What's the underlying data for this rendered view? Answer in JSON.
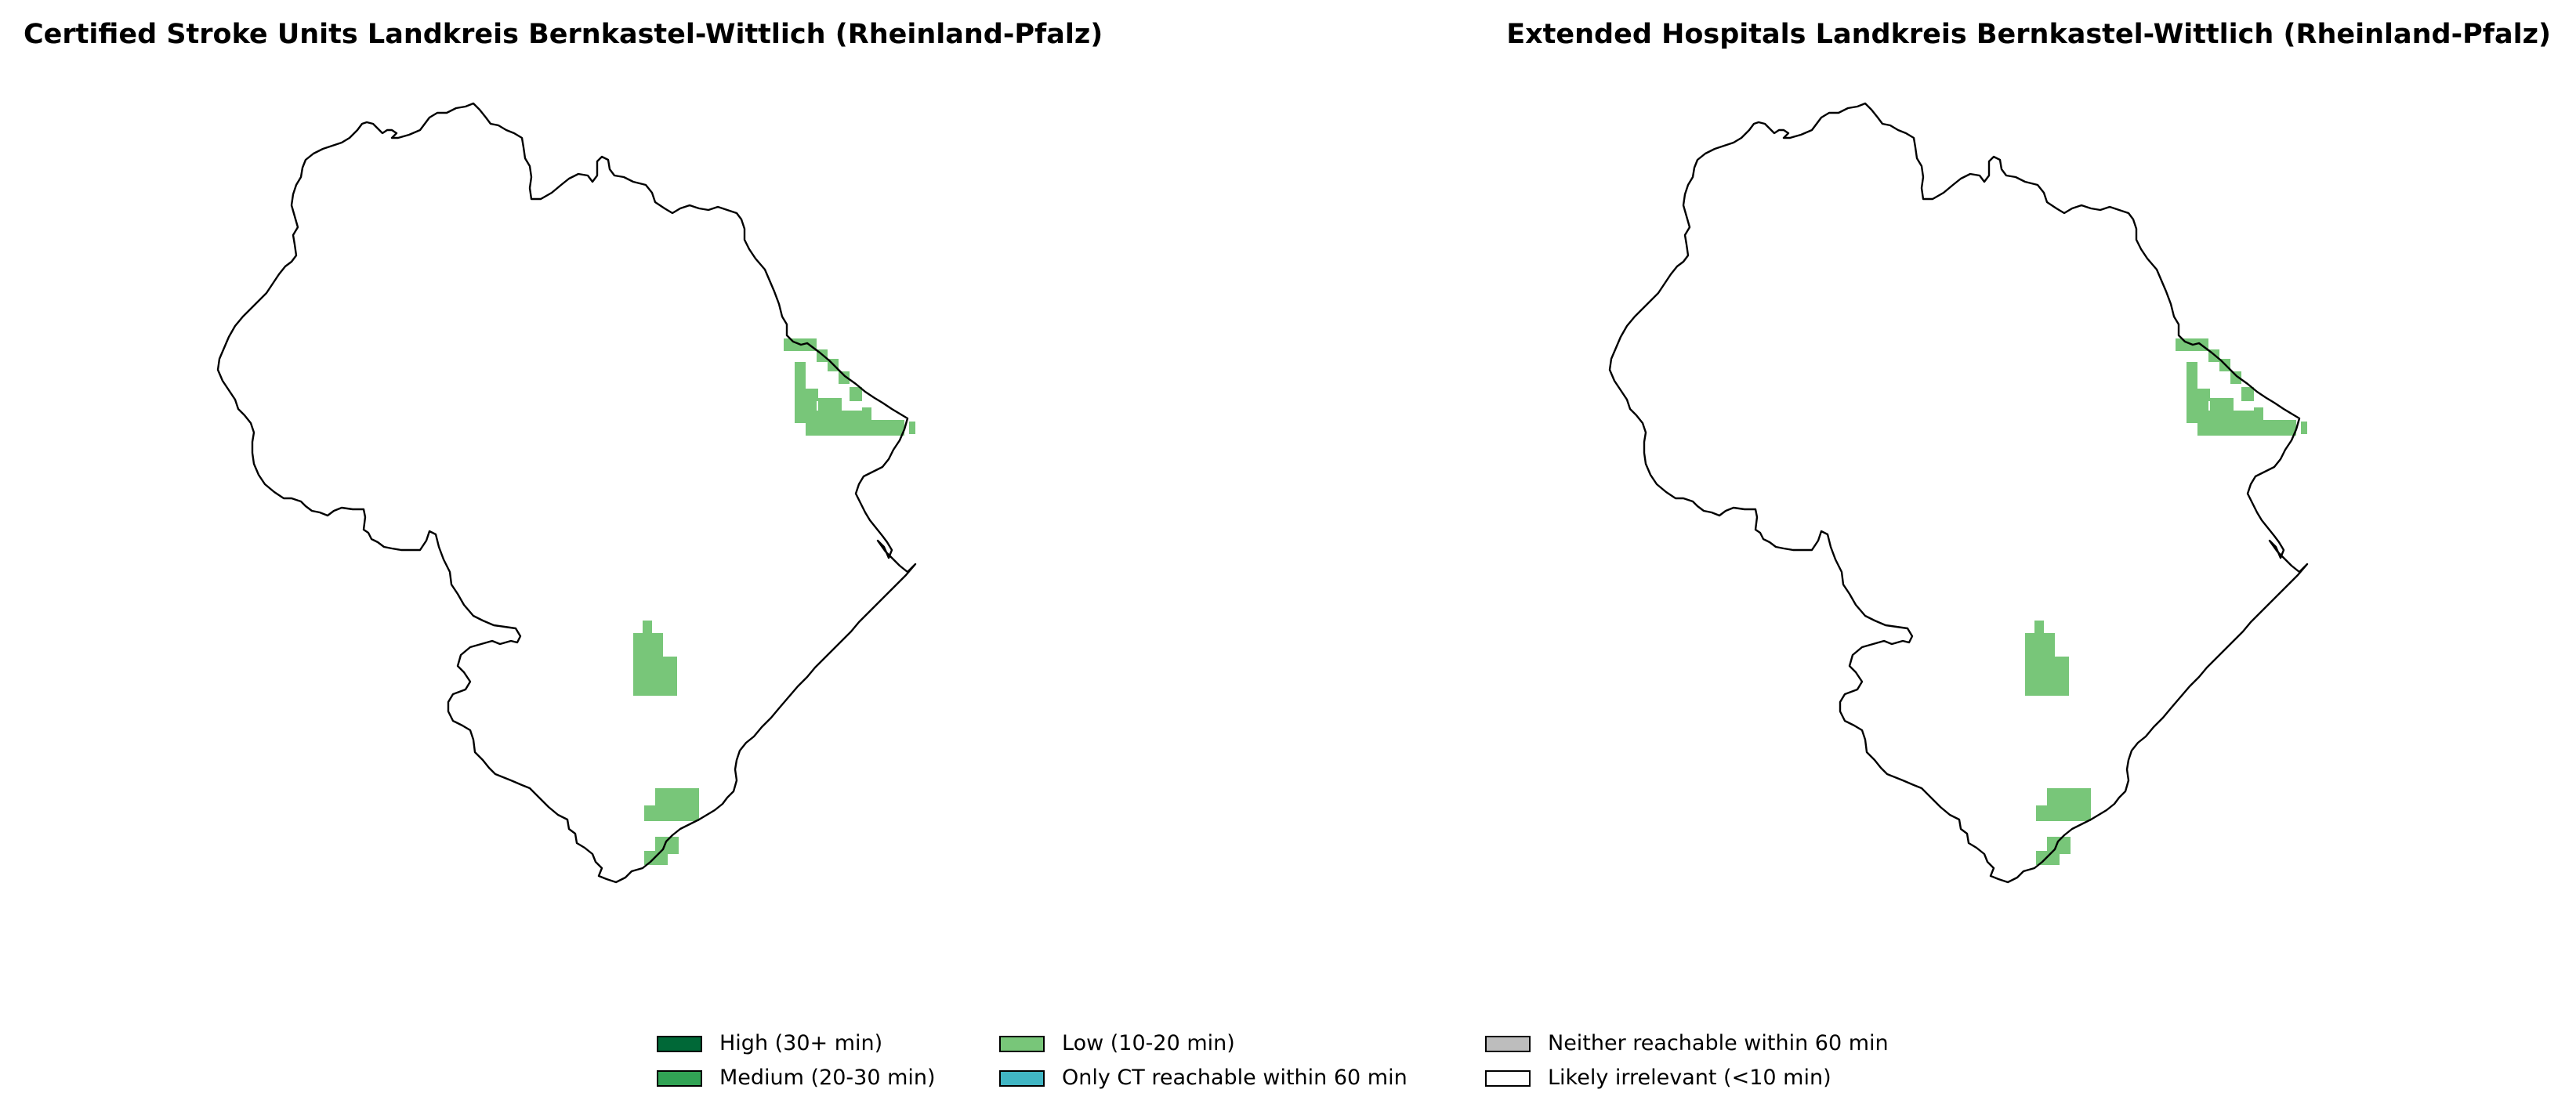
{
  "panels": [
    {
      "title": "Certified Stroke Units Landkreis Bernkastel-Wittlich (Rheinland-Pfalz)",
      "category_shown": "Low (10-20 min)"
    },
    {
      "title": "Extended Hospitals Landkreis Bernkastel-Wittlich (Rheinland-Pfalz)",
      "category_shown": "Low (10-20 min)"
    }
  ],
  "legend": {
    "items": [
      {
        "label": "High (30+ min)",
        "color": "#006837"
      },
      {
        "label": "Medium (20-30 min)",
        "color": "#31a354"
      },
      {
        "label": "Low (10-20 min)",
        "color": "#78c679"
      },
      {
        "label": "Only CT reachable within 60 min",
        "color": "#41b6c4"
      },
      {
        "label": "Neither reachable within 60 min",
        "color": "#bdbdbd"
      },
      {
        "label": "Likely irrelevant (<10 min)",
        "color": "#ffffff"
      }
    ]
  },
  "colors": {
    "boundary": "#000000",
    "background": "#ffffff"
  }
}
